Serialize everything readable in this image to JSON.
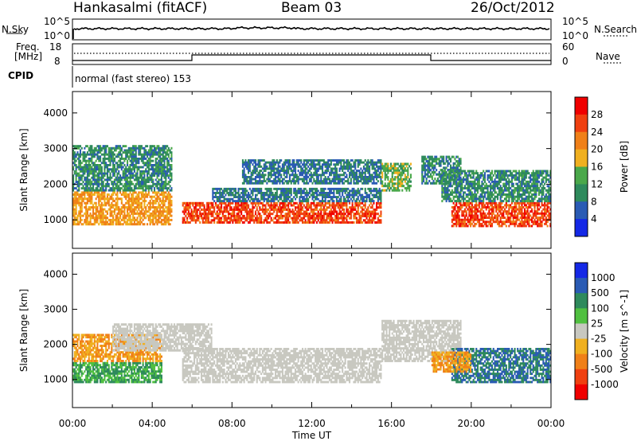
{
  "header": {
    "station": "Hankasalmi (fitACF)",
    "beam": "Beam 03",
    "date": "26/Oct/2012"
  },
  "strip": {
    "nsky_label": "N.Sky",
    "nsearch_label": "N.Search",
    "noise_ticks": [
      "10^5",
      "10^0"
    ],
    "freq_label": "Freq.",
    "freq_unit": "[MHz]",
    "freq_ticks": [
      "18",
      "8"
    ],
    "nave_label": "Nave",
    "nave_ticks": [
      "60",
      "0"
    ],
    "cpid_label": "CPID",
    "cpid_text": "normal (fast stereo) 153"
  },
  "chart_data": [
    {
      "type": "heatmap",
      "panel": "power",
      "xlabel": "",
      "ylabel": "Slant Range [km]",
      "xlim": [
        "00:00",
        "24:00"
      ],
      "ylim": [
        200,
        4600
      ],
      "y_ticks": [
        1000,
        2000,
        3000,
        4000
      ],
      "colorbar": {
        "label": "Power [dB]",
        "ticks": [
          4,
          8,
          12,
          16,
          20,
          24,
          28
        ],
        "colors": [
          "#1428e6",
          "#2a5bb4",
          "#2e8a5c",
          "#4aa84a",
          "#f0b020",
          "#f08018",
          "#f04010",
          "#f00000"
        ]
      },
      "regions": [
        {
          "t0": 0.0,
          "t1": 5.0,
          "r0": 850,
          "r1": 1800,
          "value": 22
        },
        {
          "t0": 0.0,
          "t1": 5.0,
          "r0": 1800,
          "r1": 3100,
          "value": 12
        },
        {
          "t0": 5.5,
          "t1": 15.5,
          "r0": 900,
          "r1": 1500,
          "value": 28
        },
        {
          "t0": 7.0,
          "t1": 15.5,
          "r0": 1500,
          "r1": 1900,
          "value": 10
        },
        {
          "t0": 8.5,
          "t1": 15.5,
          "r0": 2000,
          "r1": 2700,
          "value": 10
        },
        {
          "t0": 15.5,
          "t1": 17.0,
          "r0": 1800,
          "r1": 2600,
          "value": 16
        },
        {
          "t0": 17.5,
          "t1": 19.5,
          "r0": 2000,
          "r1": 2800,
          "value": 12
        },
        {
          "t0": 19.0,
          "t1": 24.0,
          "r0": 800,
          "r1": 1500,
          "value": 28
        },
        {
          "t0": 18.5,
          "t1": 24.0,
          "r0": 1500,
          "r1": 2400,
          "value": 12
        }
      ]
    },
    {
      "type": "heatmap",
      "panel": "velocity",
      "xlabel": "Time UT",
      "ylabel": "Slant Range [km]",
      "xlim": [
        "00:00",
        "24:00"
      ],
      "ylim": [
        200,
        4600
      ],
      "x_ticks": [
        "00:00",
        "04:00",
        "08:00",
        "12:00",
        "16:00",
        "20:00",
        "00:00"
      ],
      "y_ticks": [
        1000,
        2000,
        3000,
        4000
      ],
      "colorbar": {
        "label": "Velocity [m s^-1]",
        "ticks": [
          1000,
          500,
          100,
          25,
          -25,
          -100,
          -500,
          -1000
        ],
        "colors": [
          "#1428e6",
          "#2a5bb4",
          "#2e8a5c",
          "#50c040",
          "#c8c8c0",
          "#f0b020",
          "#f08018",
          "#f04010",
          "#f00000"
        ]
      },
      "regions": [
        {
          "t0": 0.0,
          "t1": 4.5,
          "r0": 900,
          "r1": 1500,
          "value": 100
        },
        {
          "t0": 0.0,
          "t1": 4.5,
          "r0": 1500,
          "r1": 2300,
          "value": -100
        },
        {
          "t0": 2.0,
          "t1": 7.0,
          "r0": 1800,
          "r1": 2600,
          "value": 0
        },
        {
          "t0": 5.5,
          "t1": 15.5,
          "r0": 900,
          "r1": 1900,
          "value": 0
        },
        {
          "t0": 15.5,
          "t1": 19.5,
          "r0": 1500,
          "r1": 2700,
          "value": 0
        },
        {
          "t0": 19.0,
          "t1": 24.0,
          "r0": 900,
          "r1": 1900,
          "value": 500
        },
        {
          "t0": 18.0,
          "t1": 20.0,
          "r0": 1200,
          "r1": 1800,
          "value": -100
        }
      ]
    }
  ]
}
